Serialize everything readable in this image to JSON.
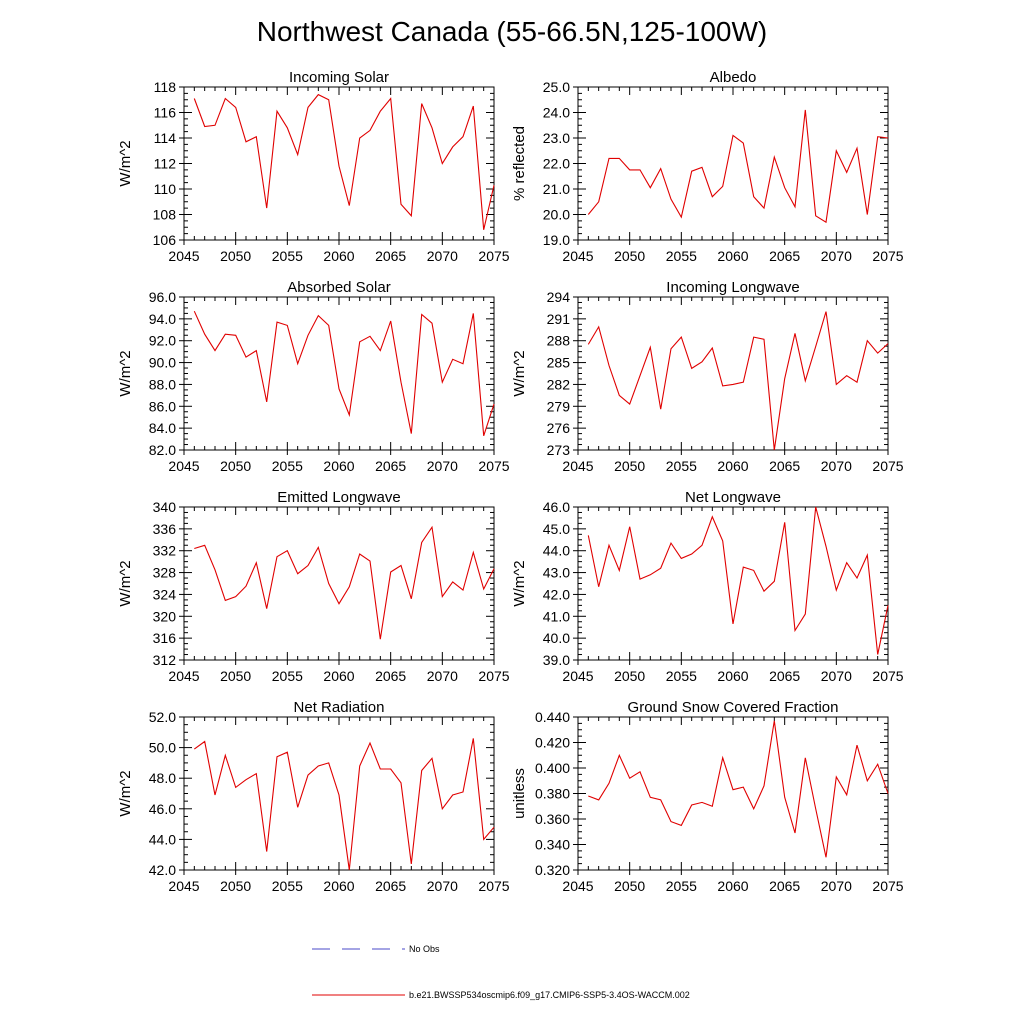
{
  "figure": {
    "title": "Northwest Canada (55-66.5N,125-100W)"
  },
  "legend": {
    "obs_label": "No Obs",
    "obs_color": "#4a4ac8",
    "model_label": "b.e21.BWSSP534oscmip6.f09_g17.CMIP6-SSP5-3.4OS-WACCM.002",
    "model_color": "#e00000"
  },
  "chart_data": [
    {
      "type": "line",
      "title": "Incoming Solar",
      "ylabel": "W/m^2",
      "xlim": [
        2045,
        2075
      ],
      "ylim": [
        106,
        118
      ],
      "xticks": [
        2045,
        2050,
        2055,
        2060,
        2065,
        2070,
        2075
      ],
      "yticks": [
        "106",
        "108",
        "110",
        "112",
        "114",
        "116",
        "118"
      ],
      "x": [
        2046,
        2047,
        2048,
        2049,
        2050,
        2051,
        2052,
        2053,
        2054,
        2055,
        2056,
        2057,
        2058,
        2059,
        2060,
        2061,
        2062,
        2063,
        2064,
        2065,
        2066,
        2067,
        2068,
        2069,
        2070,
        2071,
        2072,
        2073,
        2074,
        2075
      ],
      "values": [
        117.1,
        114.9,
        115.0,
        117.1,
        116.4,
        113.7,
        114.1,
        108.5,
        116.1,
        114.8,
        112.7,
        116.4,
        117.4,
        117.0,
        111.8,
        108.7,
        114.0,
        114.6,
        116.1,
        117.1,
        108.8,
        107.9,
        116.7,
        114.8,
        112.0,
        113.3,
        114.1,
        116.5,
        106.8,
        110.3
      ],
      "grid": false
    },
    {
      "type": "line",
      "title": "Albedo",
      "ylabel": "% reflected",
      "xlim": [
        2045,
        2075
      ],
      "ylim": [
        19.0,
        25.0
      ],
      "xticks": [
        2045,
        2050,
        2055,
        2060,
        2065,
        2070,
        2075
      ],
      "yticks": [
        "19.0",
        "20.0",
        "21.0",
        "22.0",
        "23.0",
        "24.0",
        "25.0"
      ],
      "x": [
        2046,
        2047,
        2048,
        2049,
        2050,
        2051,
        2052,
        2053,
        2054,
        2055,
        2056,
        2057,
        2058,
        2059,
        2060,
        2061,
        2062,
        2063,
        2064,
        2065,
        2066,
        2067,
        2068,
        2069,
        2070,
        2071,
        2072,
        2073,
        2074,
        2075
      ],
      "values": [
        20.0,
        20.5,
        22.2,
        22.2,
        21.75,
        21.75,
        21.05,
        21.8,
        20.6,
        19.9,
        21.7,
        21.85,
        20.7,
        21.1,
        23.1,
        22.8,
        20.7,
        20.25,
        22.25,
        21.05,
        20.3,
        24.1,
        19.95,
        19.7,
        22.5,
        21.65,
        22.6,
        20.0,
        23.05,
        23.0
      ],
      "grid": false
    },
    {
      "type": "line",
      "title": "Absorbed Solar",
      "ylabel": "W/m^2",
      "xlim": [
        2045,
        2075
      ],
      "ylim": [
        82.0,
        96.0
      ],
      "xticks": [
        2045,
        2050,
        2055,
        2060,
        2065,
        2070,
        2075
      ],
      "yticks": [
        "82.0",
        "84.0",
        "86.0",
        "88.0",
        "90.0",
        "92.0",
        "94.0",
        "96.0"
      ],
      "x": [
        2046,
        2047,
        2048,
        2049,
        2050,
        2051,
        2052,
        2053,
        2054,
        2055,
        2056,
        2057,
        2058,
        2059,
        2060,
        2061,
        2062,
        2063,
        2064,
        2065,
        2066,
        2067,
        2068,
        2069,
        2070,
        2071,
        2072,
        2073,
        2074,
        2075
      ],
      "values": [
        94.7,
        92.6,
        91.1,
        92.6,
        92.5,
        90.5,
        91.1,
        86.4,
        93.7,
        93.4,
        89.9,
        92.5,
        94.3,
        93.4,
        87.6,
        85.2,
        91.9,
        92.4,
        91.1,
        93.8,
        88.2,
        83.5,
        94.4,
        93.6,
        88.2,
        90.3,
        89.9,
        94.5,
        83.3,
        86.2
      ],
      "grid": false
    },
    {
      "type": "line",
      "title": "Incoming Longwave",
      "ylabel": "W/m^2",
      "xlim": [
        2045,
        2075
      ],
      "ylim": [
        273,
        294
      ],
      "xticks": [
        2045,
        2050,
        2055,
        2060,
        2065,
        2070,
        2075
      ],
      "yticks": [
        "273",
        "276",
        "279",
        "282",
        "285",
        "288",
        "291",
        "294"
      ],
      "x": [
        2046,
        2047,
        2048,
        2049,
        2050,
        2051,
        2052,
        2053,
        2054,
        2055,
        2056,
        2057,
        2058,
        2059,
        2060,
        2061,
        2062,
        2063,
        2064,
        2065,
        2066,
        2067,
        2068,
        2069,
        2070,
        2071,
        2072,
        2073,
        2074,
        2075
      ],
      "values": [
        287.5,
        289.9,
        284.6,
        280.5,
        279.3,
        283.2,
        287.1,
        278.6,
        286.9,
        288.5,
        284.2,
        285.1,
        287.0,
        281.8,
        282.0,
        282.3,
        288.5,
        288.2,
        273.0,
        282.8,
        289.0,
        282.5,
        287.2,
        292.0,
        282.0,
        283.2,
        282.3,
        288.0,
        286.3,
        287.6
      ],
      "grid": false
    },
    {
      "type": "line",
      "title": "Emitted Longwave",
      "ylabel": "W/m^2",
      "xlim": [
        2045,
        2075
      ],
      "ylim": [
        312,
        340
      ],
      "xticks": [
        2045,
        2050,
        2055,
        2060,
        2065,
        2070,
        2075
      ],
      "yticks": [
        "312",
        "316",
        "320",
        "324",
        "328",
        "332",
        "336",
        "340"
      ],
      "x": [
        2046,
        2047,
        2048,
        2049,
        2050,
        2051,
        2052,
        2053,
        2054,
        2055,
        2056,
        2057,
        2058,
        2059,
        2060,
        2061,
        2062,
        2063,
        2064,
        2065,
        2066,
        2067,
        2068,
        2069,
        2070,
        2071,
        2072,
        2073,
        2074,
        2075
      ],
      "values": [
        332.4,
        333.0,
        328.5,
        322.9,
        323.6,
        325.5,
        329.8,
        321.4,
        330.9,
        332.0,
        327.8,
        329.3,
        332.6,
        326.0,
        322.3,
        325.4,
        331.4,
        330.1,
        315.8,
        328.1,
        329.3,
        323.2,
        333.5,
        336.3,
        323.6,
        326.3,
        324.8,
        331.7,
        325.0,
        328.7
      ],
      "grid": false
    },
    {
      "type": "line",
      "title": "Net Longwave",
      "ylabel": "W/m^2",
      "xlim": [
        2045,
        2075
      ],
      "ylim": [
        39.0,
        46.0
      ],
      "xticks": [
        2045,
        2050,
        2055,
        2060,
        2065,
        2070,
        2075
      ],
      "yticks": [
        "39.0",
        "40.0",
        "41.0",
        "42.0",
        "43.0",
        "44.0",
        "45.0",
        "46.0"
      ],
      "x": [
        2046,
        2047,
        2048,
        2049,
        2050,
        2051,
        2052,
        2053,
        2054,
        2055,
        2056,
        2057,
        2058,
        2059,
        2060,
        2061,
        2062,
        2063,
        2064,
        2065,
        2066,
        2067,
        2068,
        2069,
        2070,
        2071,
        2072,
        2073,
        2074,
        2075
      ],
      "values": [
        44.7,
        42.35,
        44.25,
        43.1,
        45.1,
        42.7,
        42.9,
        43.2,
        44.35,
        43.65,
        43.85,
        44.25,
        45.55,
        44.45,
        40.65,
        43.25,
        43.1,
        42.15,
        42.6,
        45.3,
        40.35,
        41.1,
        46.0,
        44.2,
        42.2,
        43.45,
        42.75,
        43.8,
        39.25,
        41.5
      ],
      "grid": false
    },
    {
      "type": "line",
      "title": "Net Radiation",
      "ylabel": "W/m^2",
      "xlim": [
        2045,
        2075
      ],
      "ylim": [
        42.0,
        52.0
      ],
      "xticks": [
        2045,
        2050,
        2055,
        2060,
        2065,
        2070,
        2075
      ],
      "yticks": [
        "42.0",
        "44.0",
        "46.0",
        "48.0",
        "50.0",
        "52.0"
      ],
      "x": [
        2046,
        2047,
        2048,
        2049,
        2050,
        2051,
        2052,
        2053,
        2054,
        2055,
        2056,
        2057,
        2058,
        2059,
        2060,
        2061,
        2062,
        2063,
        2064,
        2065,
        2066,
        2067,
        2068,
        2069,
        2070,
        2071,
        2072,
        2073,
        2074,
        2075
      ],
      "values": [
        49.9,
        50.4,
        46.9,
        49.5,
        47.4,
        47.9,
        48.3,
        43.2,
        49.4,
        49.7,
        46.1,
        48.2,
        48.8,
        49.0,
        46.9,
        42.0,
        48.8,
        50.3,
        48.6,
        48.6,
        47.7,
        42.4,
        48.5,
        49.3,
        46.0,
        46.9,
        47.1,
        50.6,
        44.0,
        44.8
      ],
      "grid": false
    },
    {
      "type": "line",
      "title": "Ground Snow Covered Fraction",
      "ylabel": "unitless",
      "xlim": [
        2045,
        2075
      ],
      "ylim": [
        0.32,
        0.44
      ],
      "xticks": [
        2045,
        2050,
        2055,
        2060,
        2065,
        2070,
        2075
      ],
      "yticks": [
        "0.320",
        "0.340",
        "0.360",
        "0.380",
        "0.400",
        "0.420",
        "0.440"
      ],
      "x": [
        2046,
        2047,
        2048,
        2049,
        2050,
        2051,
        2052,
        2053,
        2054,
        2055,
        2056,
        2057,
        2058,
        2059,
        2060,
        2061,
        2062,
        2063,
        2064,
        2065,
        2066,
        2067,
        2068,
        2069,
        2070,
        2071,
        2072,
        2073,
        2074,
        2075
      ],
      "values": [
        0.378,
        0.375,
        0.388,
        0.41,
        0.392,
        0.397,
        0.377,
        0.375,
        0.358,
        0.355,
        0.371,
        0.373,
        0.37,
        0.408,
        0.383,
        0.385,
        0.368,
        0.386,
        0.437,
        0.377,
        0.349,
        0.408,
        0.368,
        0.33,
        0.393,
        0.379,
        0.418,
        0.39,
        0.403,
        0.38
      ],
      "grid": false
    }
  ]
}
